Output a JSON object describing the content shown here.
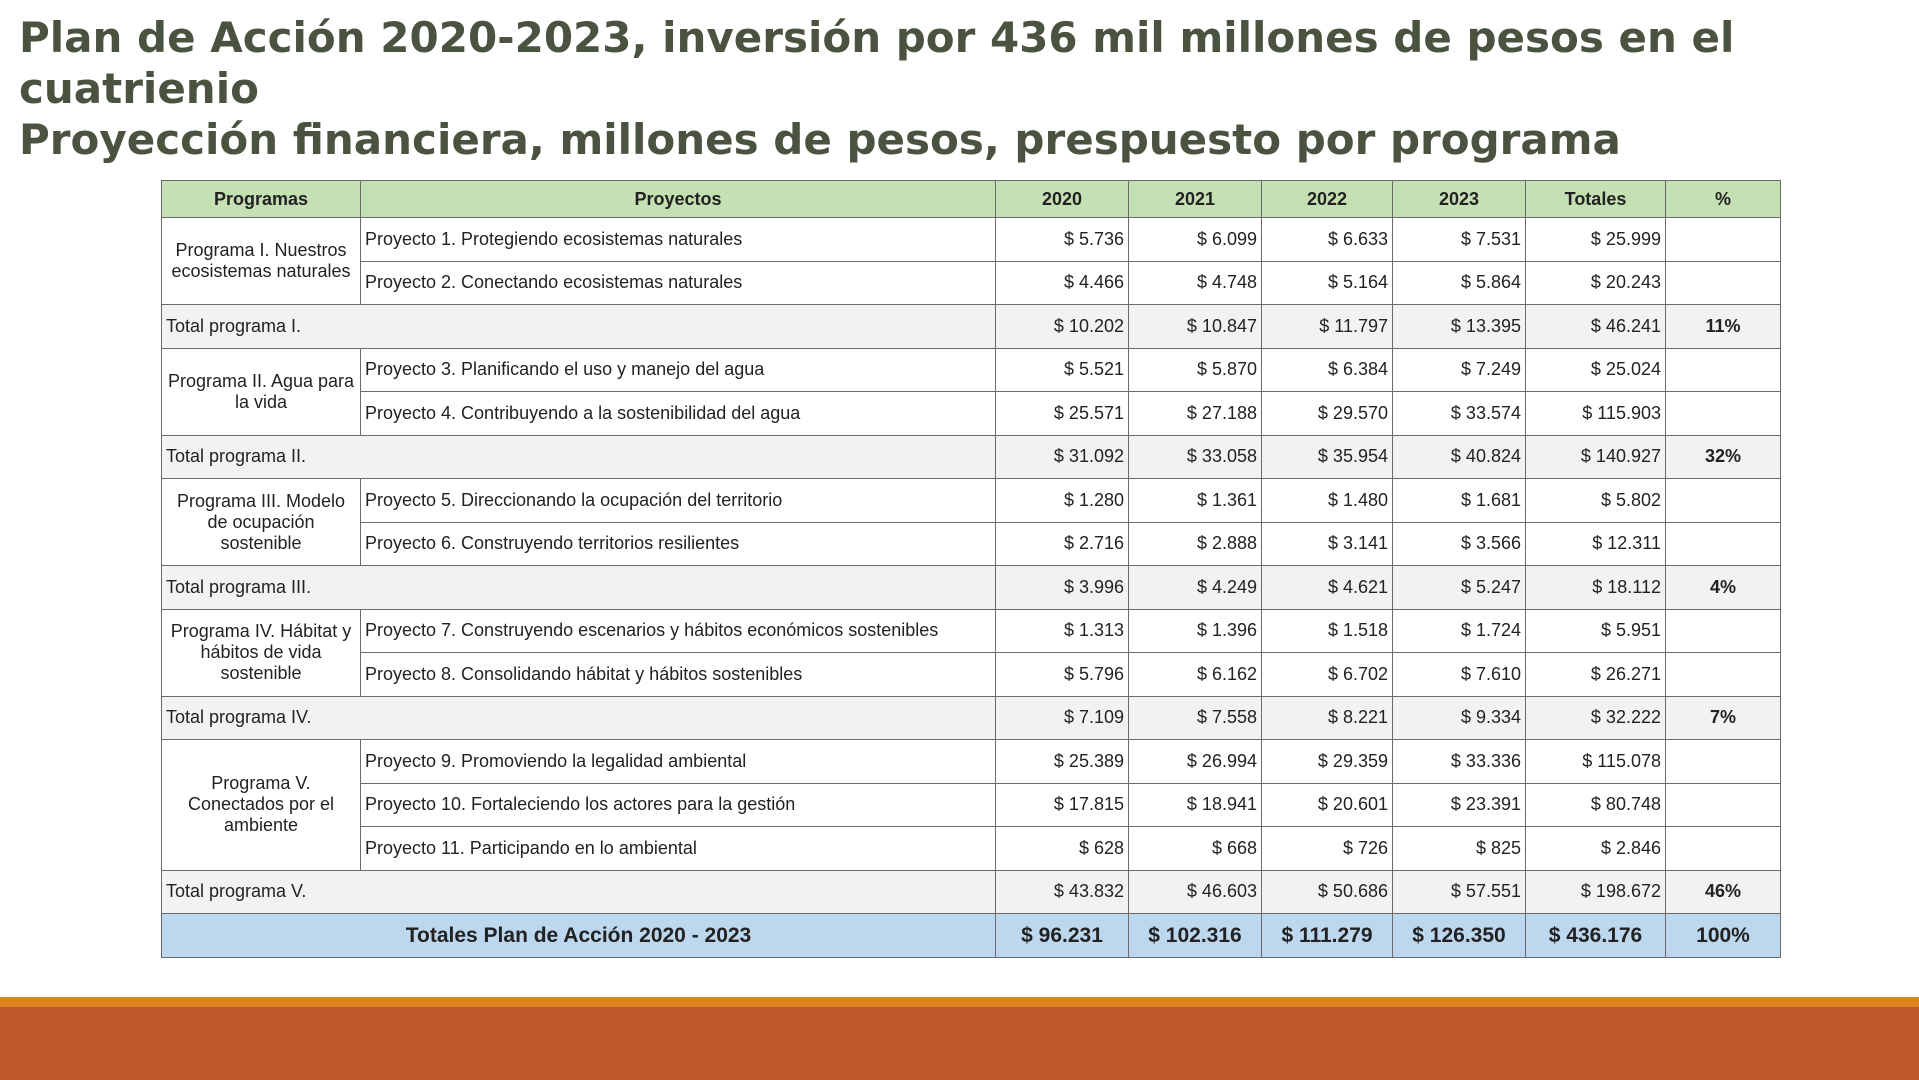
{
  "title": {
    "line1": "Plan de Acción 2020-2023, inversión por 436 mil millones de pesos en el cuatrienio",
    "line2": "Proyección financiera, millones de pesos, prespuesto por programa"
  },
  "table": {
    "headers": {
      "programas": "Programas",
      "proyectos": "Proyectos",
      "y2020": "2020",
      "y2021": "2021",
      "y2022": "2022",
      "y2023": "2023",
      "totales": "Totales",
      "pct": "%"
    },
    "programs": [
      {
        "name": "Programa I. Nuestros ecosistemas naturales",
        "projects": [
          {
            "name": "Proyecto 1. Protegiendo ecosistemas naturales",
            "v": [
              "$ 5.736",
              "$ 6.099",
              "$ 6.633",
              "$ 7.531",
              "$ 25.999"
            ]
          },
          {
            "name": "Proyecto 2. Conectando ecosistemas naturales",
            "v": [
              "$ 4.466",
              "$ 4.748",
              "$ 5.164",
              "$ 5.864",
              "$ 20.243"
            ]
          }
        ],
        "total": {
          "label": "Total programa I.",
          "v": [
            "$ 10.202",
            "$ 10.847",
            "$ 11.797",
            "$ 13.395",
            "$ 46.241"
          ],
          "pct": "11%"
        }
      },
      {
        "name": "Programa II. Agua para la vida",
        "projects": [
          {
            "name": "Proyecto 3. Planificando el uso y manejo del agua",
            "v": [
              "$ 5.521",
              "$ 5.870",
              "$ 6.384",
              "$ 7.249",
              "$ 25.024"
            ]
          },
          {
            "name": "Proyecto 4. Contribuyendo a la sostenibilidad del agua",
            "v": [
              "$ 25.571",
              "$ 27.188",
              "$ 29.570",
              "$ 33.574",
              "$ 115.903"
            ]
          }
        ],
        "total": {
          "label": "Total programa II.",
          "v": [
            "$ 31.092",
            "$ 33.058",
            "$ 35.954",
            "$ 40.824",
            "$ 140.927"
          ],
          "pct": "32%"
        }
      },
      {
        "name": "Programa III. Modelo de ocupación sostenible",
        "projects": [
          {
            "name": "Proyecto 5. Direccionando la ocupación del territorio",
            "v": [
              "$ 1.280",
              "$ 1.361",
              "$ 1.480",
              "$ 1.681",
              "$ 5.802"
            ]
          },
          {
            "name": "Proyecto 6. Construyendo territorios resilientes",
            "v": [
              "$ 2.716",
              "$ 2.888",
              "$ 3.141",
              "$ 3.566",
              "$ 12.311"
            ]
          }
        ],
        "total": {
          "label": "Total programa III.",
          "v": [
            "$ 3.996",
            "$ 4.249",
            "$ 4.621",
            "$ 5.247",
            "$ 18.112"
          ],
          "pct": "4%"
        }
      },
      {
        "name": "Programa IV. Hábitat y hábitos de vida sostenible",
        "projects": [
          {
            "name": "Proyecto 7. Construyendo escenarios y hábitos económicos sostenibles",
            "v": [
              "$ 1.313",
              "$ 1.396",
              "$ 1.518",
              "$ 1.724",
              "$ 5.951"
            ]
          },
          {
            "name": "Proyecto 8. Consolidando hábitat y hábitos sostenibles",
            "v": [
              "$ 5.796",
              "$ 6.162",
              "$ 6.702",
              "$ 7.610",
              "$ 26.271"
            ]
          }
        ],
        "total": {
          "label": "Total programa IV.",
          "v": [
            "$ 7.109",
            "$ 7.558",
            "$ 8.221",
            "$ 9.334",
            "$ 32.222"
          ],
          "pct": "7%"
        }
      },
      {
        "name": "Programa V. Conectados por el ambiente",
        "projects": [
          {
            "name": "Proyecto 9. Promoviendo la legalidad ambiental",
            "v": [
              "$ 25.389",
              "$ 26.994",
              "$ 29.359",
              "$ 33.336",
              "$ 115.078"
            ]
          },
          {
            "name": "Proyecto 10. Fortaleciendo los actores para la gestión",
            "v": [
              "$ 17.815",
              "$ 18.941",
              "$ 20.601",
              "$ 23.391",
              "$ 80.748"
            ]
          },
          {
            "name": "Proyecto 11. Participando en lo ambiental",
            "v": [
              "$ 628",
              "$ 668",
              "$ 726",
              "$ 825",
              "$ 2.846"
            ]
          }
        ],
        "total": {
          "label": "Total programa V.",
          "v": [
            "$ 43.832",
            "$ 46.603",
            "$ 50.686",
            "$ 57.551",
            "$ 198.672"
          ],
          "pct": "46%"
        }
      }
    ],
    "grand_total": {
      "label": "Totales Plan de Acción 2020 - 2023",
      "v": [
        "$ 96.231",
        "$ 102.316",
        "$ 111.279",
        "$ 126.350",
        "$ 436.176"
      ],
      "pct": "100%"
    }
  },
  "colors": {
    "title": "#4a5340",
    "header_bg": "#c5e0b3",
    "total_bg": "#f2f2f2",
    "grand_bg": "#bdd7ee",
    "footer_stripe": "#d9841f",
    "footer_bar": "#bd582c"
  }
}
